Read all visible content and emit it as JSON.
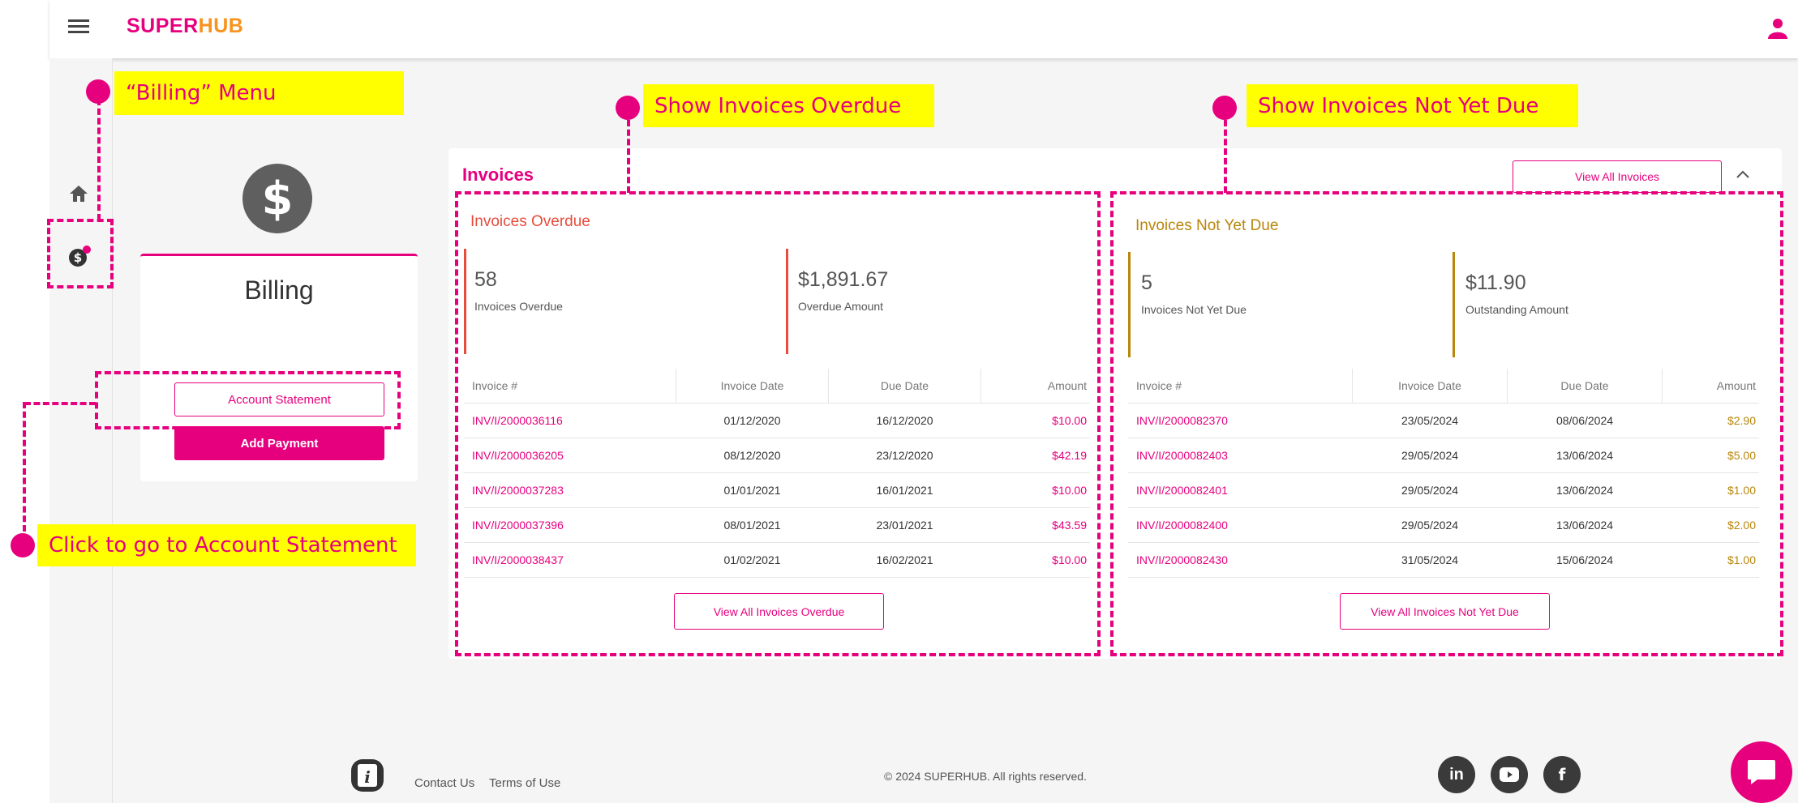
{
  "topbar": {
    "logo_super": "SUPER",
    "logo_hub": "HUB"
  },
  "annotations": {
    "billing_menu": "“Billing” Menu",
    "show_overdue": "Show Invoices Overdue",
    "show_not_yet_due": "Show Invoices Not Yet Due",
    "account_statement": "Click to go to Account Statement"
  },
  "billing_card": {
    "icon": "dollar-circle-icon",
    "title": "Billing",
    "account_statement_label": "Account Statement",
    "add_payment_label": "Add Payment"
  },
  "invoices": {
    "title": "Invoices",
    "view_all_label": "View All Invoices",
    "overdue": {
      "title": "Invoices Overdue",
      "count": "58",
      "count_label": "Invoices Overdue",
      "amount": "$1,891.67",
      "amount_label": "Overdue Amount",
      "columns": [
        "Invoice #",
        "Invoice Date",
        "Due Date",
        "Amount"
      ],
      "rows": [
        [
          "INV/I/2000036116",
          "01/12/2020",
          "16/12/2020",
          "$10.00"
        ],
        [
          "INV/I/2000036205",
          "08/12/2020",
          "23/12/2020",
          "$42.19"
        ],
        [
          "INV/I/2000037283",
          "01/01/2021",
          "16/01/2021",
          "$10.00"
        ],
        [
          "INV/I/2000037396",
          "08/01/2021",
          "23/01/2021",
          "$43.59"
        ],
        [
          "INV/I/2000038437",
          "01/02/2021",
          "16/02/2021",
          "$10.00"
        ]
      ],
      "view_all_label": "View All Invoices Overdue"
    },
    "not_yet_due": {
      "title": "Invoices Not Yet Due",
      "count": "5",
      "count_label": "Invoices Not Yet Due",
      "amount": "$11.90",
      "amount_label": "Outstanding Amount",
      "columns": [
        "Invoice #",
        "Invoice Date",
        "Due Date",
        "Amount"
      ],
      "rows": [
        [
          "INV/I/2000082370",
          "23/05/2024",
          "08/06/2024",
          "$2.90"
        ],
        [
          "INV/I/2000082403",
          "29/05/2024",
          "13/06/2024",
          "$5.00"
        ],
        [
          "INV/I/2000082401",
          "29/05/2024",
          "13/06/2024",
          "$1.00"
        ],
        [
          "INV/I/2000082400",
          "29/05/2024",
          "13/06/2024",
          "$2.00"
        ],
        [
          "INV/I/2000082430",
          "31/05/2024",
          "15/06/2024",
          "$1.00"
        ]
      ],
      "view_all_label": "View All Invoices Not Yet Due"
    }
  },
  "footer": {
    "contact_us": "Contact Us",
    "terms": "Terms of Use",
    "copyright": "© 2024 SUPERHUB. All rights reserved."
  },
  "colors": {
    "brand": "#e6007e",
    "highlight": "#ffff00",
    "gold": "#b8860b"
  }
}
